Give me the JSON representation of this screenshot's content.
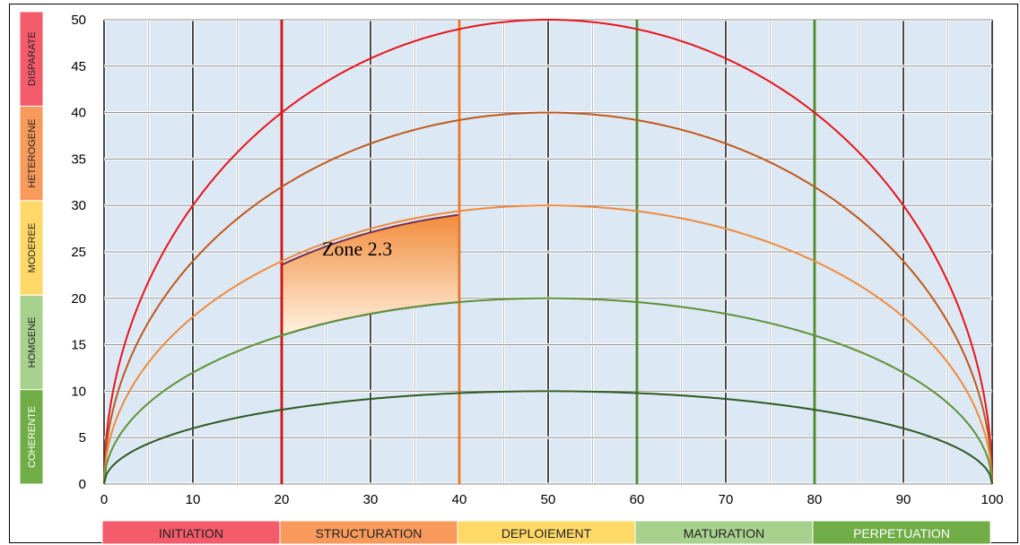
{
  "chart_data": {
    "type": "line",
    "xlim": [
      0,
      100
    ],
    "ylim": [
      0,
      50
    ],
    "x_ticks": [
      "0",
      "10",
      "20",
      "30",
      "40",
      "50",
      "60",
      "70",
      "80",
      "90",
      "100"
    ],
    "y_ticks": [
      "0",
      "5",
      "10",
      "15",
      "20",
      "25",
      "30",
      "35",
      "40",
      "45",
      "50"
    ],
    "grid": true,
    "plot_background": "#dce9f5",
    "series": [
      {
        "peak": 50,
        "color": "#e8141c"
      },
      {
        "peak": 40,
        "color": "#c0581b"
      },
      {
        "peak": 30,
        "color": "#ee8a3c"
      },
      {
        "peak": 20,
        "color": "#5e9238"
      },
      {
        "peak": 10,
        "color": "#2d5a22"
      }
    ],
    "vertical_markers": [
      {
        "x": 20,
        "color": "#c51a1a"
      },
      {
        "x": 40,
        "color": "#e07a30"
      },
      {
        "x": 60,
        "color": "#4f8a33"
      },
      {
        "x": 80,
        "color": "#4f8a33"
      }
    ],
    "zone": {
      "label": "Zone 2.3",
      "x_range": [
        20,
        40
      ],
      "lower_peak": 20,
      "upper_peak": 30,
      "fill_top": "#f28c3c",
      "fill_bottom": "#fff3e2",
      "border": "#7b2e49"
    },
    "x_bands": [
      {
        "label": "INITIATION",
        "from": 0,
        "to": 20,
        "color": "#f45b6b",
        "text_color": "#222222"
      },
      {
        "label": "STRUCTURATION",
        "from": 20,
        "to": 40,
        "color": "#f79a5c",
        "text_color": "#222222"
      },
      {
        "label": "DEPLOIEMENT",
        "from": 40,
        "to": 60,
        "color": "#ffd968",
        "text_color": "#222222"
      },
      {
        "label": "MATURATION",
        "from": 60,
        "to": 80,
        "color": "#a9d18e",
        "text_color": "#222222"
      },
      {
        "label": "PERPETUATION",
        "from": 80,
        "to": 100,
        "color": "#70ad47",
        "text_color": "#ffffff"
      }
    ],
    "y_bands": [
      {
        "label": "COHERENTE",
        "from": 0,
        "to": 10,
        "color": "#70ad47",
        "text_color": "#ffffff"
      },
      {
        "label": "HOMGENE",
        "from": 10,
        "to": 20,
        "color": "#a9d18e",
        "text_color": "#222222"
      },
      {
        "label": "MODEREE",
        "from": 20,
        "to": 30,
        "color": "#ffd968",
        "text_color": "#222222"
      },
      {
        "label": "HETEROGENE",
        "from": 30,
        "to": 40,
        "color": "#f79a5c",
        "text_color": "#222222"
      },
      {
        "label": "DISPARATE",
        "from": 40,
        "to": 50,
        "color": "#f45b6b",
        "text_color": "#222222"
      }
    ]
  }
}
